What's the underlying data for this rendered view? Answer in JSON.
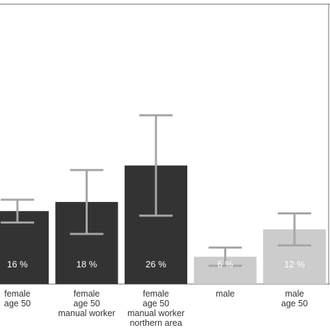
{
  "chart_data": {
    "type": "bar",
    "categories": [
      [
        "female",
        "age 50"
      ],
      [
        "female",
        "age 50",
        "manual worker"
      ],
      [
        "female",
        "age 50",
        "manual worker",
        "northern area"
      ],
      [
        "male"
      ],
      [
        "male",
        "age 50"
      ]
    ],
    "values": [
      16,
      18,
      26,
      6,
      12
    ],
    "value_labels": [
      "16 %",
      "18 %",
      "26 %",
      "6 %",
      "12 %"
    ],
    "error_low": [
      13.5,
      11.0,
      15.0,
      4.0,
      8.5
    ],
    "error_high": [
      18.5,
      25.0,
      37.0,
      8.0,
      15.5
    ],
    "ylim": [
      0,
      40
    ],
    "bar_colors": [
      "#333333",
      "#333333",
      "#333333",
      "#cccccc",
      "#cccccc"
    ],
    "error_bar_color": "#a6a6a6",
    "grid": false,
    "title": "",
    "xlabel": "",
    "ylabel": ""
  }
}
